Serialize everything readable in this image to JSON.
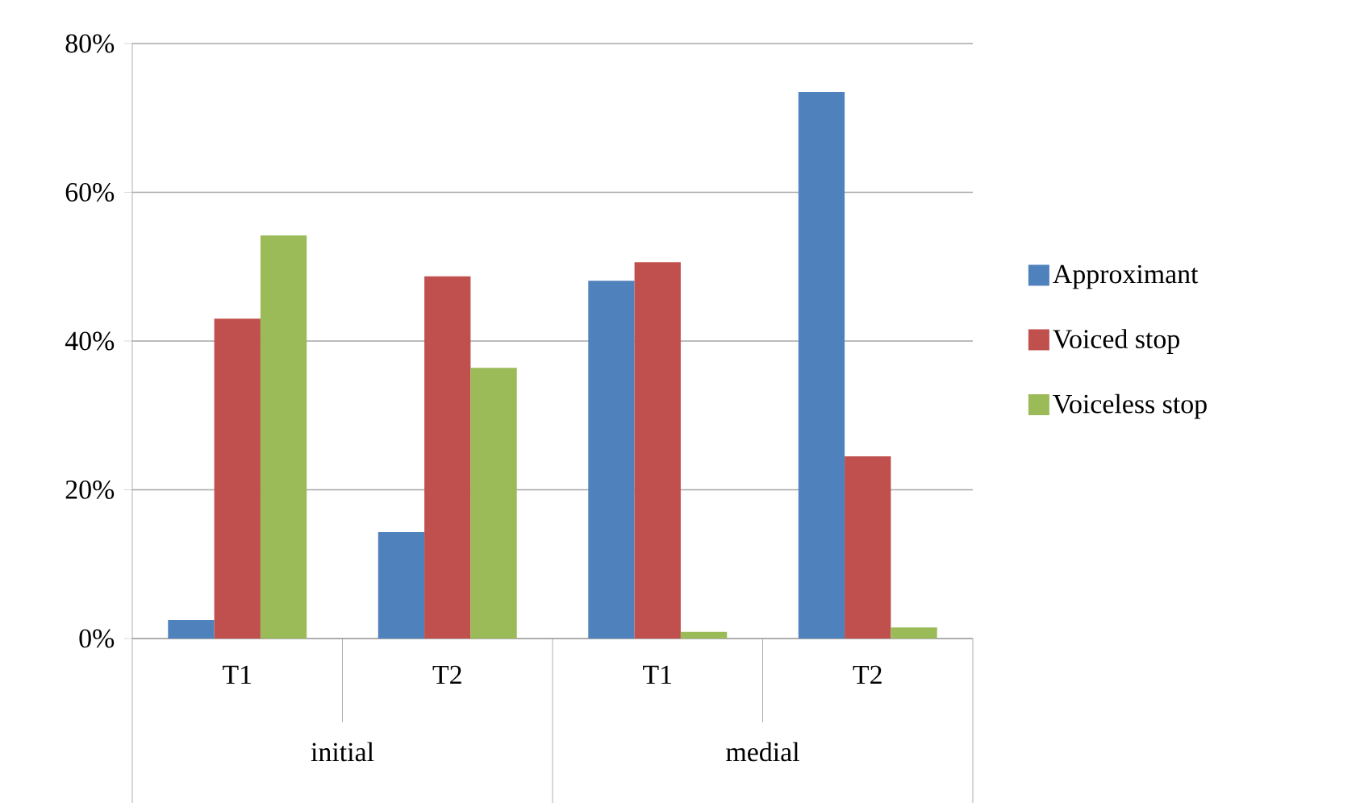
{
  "chart_data": {
    "type": "bar",
    "categories": [
      "T1",
      "T2",
      "T1",
      "T2"
    ],
    "annotations": [
      "initial",
      "medial"
    ],
    "series": [
      {
        "name": "Approximant",
        "color": "#4f81bd",
        "values": [
          2.5,
          14.3,
          48.1,
          73.5
        ]
      },
      {
        "name": "Voiced stop",
        "color": "#c0504d",
        "values": [
          43.0,
          48.7,
          50.6,
          24.5
        ]
      },
      {
        "name": "Voiceless stop",
        "color": "#9bbb59",
        "values": [
          54.2,
          36.4,
          0.9,
          1.5
        ]
      }
    ],
    "ylim": [
      0,
      80
    ],
    "yticks": [
      {
        "value": 0,
        "label": "0%"
      },
      {
        "value": 20,
        "label": "20%"
      },
      {
        "value": 40,
        "label": "40%"
      },
      {
        "value": 60,
        "label": "60%"
      },
      {
        "value": 80,
        "label": "80%"
      }
    ],
    "grid": "y",
    "legend": "right"
  }
}
